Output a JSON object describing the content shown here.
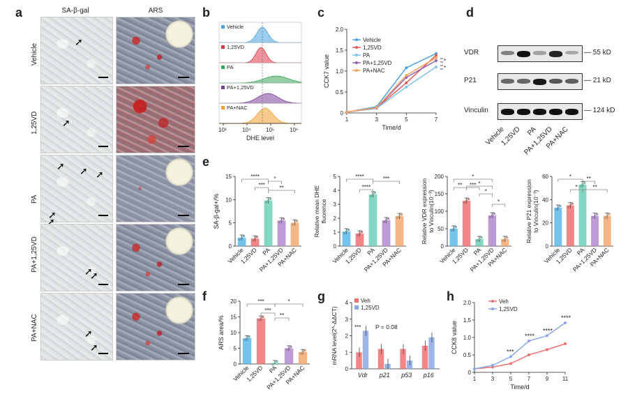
{
  "panels": {
    "a": "a",
    "b": "b",
    "c": "c",
    "d": "d",
    "e": "e",
    "f": "f",
    "g": "g",
    "h": "h"
  },
  "panel_a": {
    "col_headers": [
      "SA-β-gal",
      "ARS"
    ],
    "row_labels": [
      "Vehicle",
      "1,25VD",
      "PA",
      "PA+1,25VD",
      "PA+NAC"
    ]
  },
  "panel_b": {
    "legend": [
      "Vehicle",
      "1,25VD",
      "PA",
      "PA+1,25VD",
      "PA+NAC"
    ],
    "colors": [
      "#4aa3df",
      "#e03a4a",
      "#3aa65a",
      "#7b3f9a",
      "#f0a030"
    ],
    "x_ticks": [
      "10³",
      "10⁴",
      "10⁵",
      "10⁶"
    ],
    "x_label": "DHE level"
  },
  "chart_data": [
    {
      "type": "line",
      "panel": "c",
      "ylabel": "CCK7 value",
      "xlabel": "Time/d",
      "x": [
        1,
        3,
        5,
        7
      ],
      "ylim": [
        0,
        2.0
      ],
      "yticks": [
        "0",
        "0.5",
        "1.0",
        "1.5",
        "2.0"
      ],
      "series": [
        {
          "name": "Vehicle",
          "color": "#4aa3df",
          "values": [
            0.02,
            0.15,
            1.08,
            1.42
          ]
        },
        {
          "name": "1,25VD",
          "color": "#e05a5a",
          "values": [
            0.02,
            0.12,
            0.72,
            1.38
          ]
        },
        {
          "name": "PA",
          "color": "#7fc3ec",
          "values": [
            0.02,
            0.11,
            0.62,
            1.1
          ]
        },
        {
          "name": "PA+1,25VD",
          "color": "#9a5fb4",
          "values": [
            0.02,
            0.12,
            0.85,
            1.25
          ]
        },
        {
          "name": "PA+NAC",
          "color": "#f4a460",
          "values": [
            0.02,
            0.13,
            0.9,
            1.32
          ]
        }
      ]
    },
    {
      "type": "bar",
      "panel": "e1",
      "ylabel": "SA-β-gal+/%",
      "categories": [
        "Vehicle",
        "1,25VD",
        "PA",
        "PA+1,25VD",
        "PA+NAC"
      ],
      "values": [
        1.8,
        1.6,
        9.8,
        5.5,
        5.0
      ],
      "ylim": [
        0,
        15
      ],
      "yticks": [
        "0",
        "5",
        "10",
        "15"
      ],
      "sig": [
        "****",
        "*",
        "***",
        "**"
      ]
    },
    {
      "type": "bar",
      "panel": "e2",
      "ylabel": "Relative mean DHE fluorence",
      "categories": [
        "Vehicle",
        "1,25VD",
        "PA",
        "PA+1,25VD",
        "PA+NAC"
      ],
      "values": [
        1.05,
        0.9,
        3.7,
        1.85,
        2.15
      ],
      "ylim": [
        0,
        5
      ],
      "yticks": [
        "0",
        "1",
        "2",
        "3",
        "4",
        "5"
      ],
      "sig": [
        "****",
        "***",
        "****"
      ]
    },
    {
      "type": "bar",
      "panel": "e3",
      "ylabel": "Relative VDR expression to Vinculin(10⁻³)",
      "categories": [
        "Vehicle",
        "1,25VD",
        "PA",
        "PA+1,25VD",
        "PA+NAC"
      ],
      "values": [
        50,
        130,
        20,
        88,
        20
      ],
      "ylim": [
        0,
        200
      ],
      "yticks": [
        "0",
        "50",
        "100",
        "150",
        "200"
      ],
      "sig": [
        "*",
        "**",
        "***",
        "*",
        "*",
        "*"
      ]
    },
    {
      "type": "bar",
      "panel": "e4",
      "ylabel": "Relative P21 expression to Vinculin(10⁻³)",
      "categories": [
        "Vehicle",
        "1,25VD",
        "PA",
        "PA+1,25VD",
        "PA+NAC"
      ],
      "values": [
        33,
        35,
        53,
        26,
        26
      ],
      "ylim": [
        0,
        60
      ],
      "yticks": [
        "0",
        "20",
        "40",
        "60"
      ],
      "sig": [
        "*",
        "**",
        "*",
        "**"
      ]
    },
    {
      "type": "bar",
      "panel": "f",
      "ylabel": "ARS area/%",
      "categories": [
        "Vehicle",
        "1,25VD",
        "PA",
        "PA+1,25VD",
        "PA+NAC"
      ],
      "values": [
        8.2,
        14.5,
        0.3,
        5.0,
        3.8
      ],
      "ylim": [
        0,
        20
      ],
      "yticks": [
        "0",
        "5",
        "10",
        "15",
        "20"
      ],
      "sig": [
        "***",
        "*",
        "***",
        "**"
      ]
    },
    {
      "type": "bar",
      "panel": "g",
      "ylabel": "mRNA level(2^-ΔΔCT)",
      "categories": [
        "Vdr",
        "p21",
        "p53",
        "p16"
      ],
      "series": [
        {
          "name": "Veh",
          "color": "#f07070",
          "values": [
            1.0,
            1.2,
            1.2,
            1.4
          ]
        },
        {
          "name": "1,25VD",
          "color": "#8aa8e8",
          "values": [
            2.3,
            0.3,
            0.5,
            1.9
          ]
        }
      ],
      "ylim": [
        0,
        4
      ],
      "yticks": [
        "0",
        "1",
        "2",
        "3",
        "4"
      ],
      "annot": [
        "***",
        "P = 0.08"
      ]
    },
    {
      "type": "line",
      "panel": "h",
      "ylabel": "CCK8 value",
      "xlabel": "Time/d",
      "x": [
        1,
        3,
        5,
        7,
        9,
        11
      ],
      "ylim": [
        0,
        2.0
      ],
      "yticks": [
        "0",
        "0.5",
        "1.0",
        "1.5",
        "2.0"
      ],
      "series": [
        {
          "name": "Veh",
          "color": "#f07070",
          "values": [
            0.1,
            0.15,
            0.25,
            0.5,
            0.65,
            0.82
          ]
        },
        {
          "name": "1,25VD",
          "color": "#8aa8e8",
          "values": [
            0.1,
            0.2,
            0.45,
            0.9,
            1.05,
            1.42
          ]
        }
      ],
      "sig": [
        "***",
        "****",
        "****",
        "****"
      ]
    }
  ],
  "panel_d": {
    "rows": [
      {
        "label": "VDR",
        "kd": "55 kD"
      },
      {
        "label": "P21",
        "kd": "21 kD"
      },
      {
        "label": "Vinculin",
        "kd": "124 kD"
      }
    ],
    "lanes": [
      "Vehicle",
      "1,25VD",
      "PA",
      "PA+1,25VD",
      "PA+NAC"
    ]
  },
  "bar_colors": [
    "#5bb8e8",
    "#f07070",
    "#6fd0b8",
    "#b08ad0",
    "#f4a870"
  ]
}
